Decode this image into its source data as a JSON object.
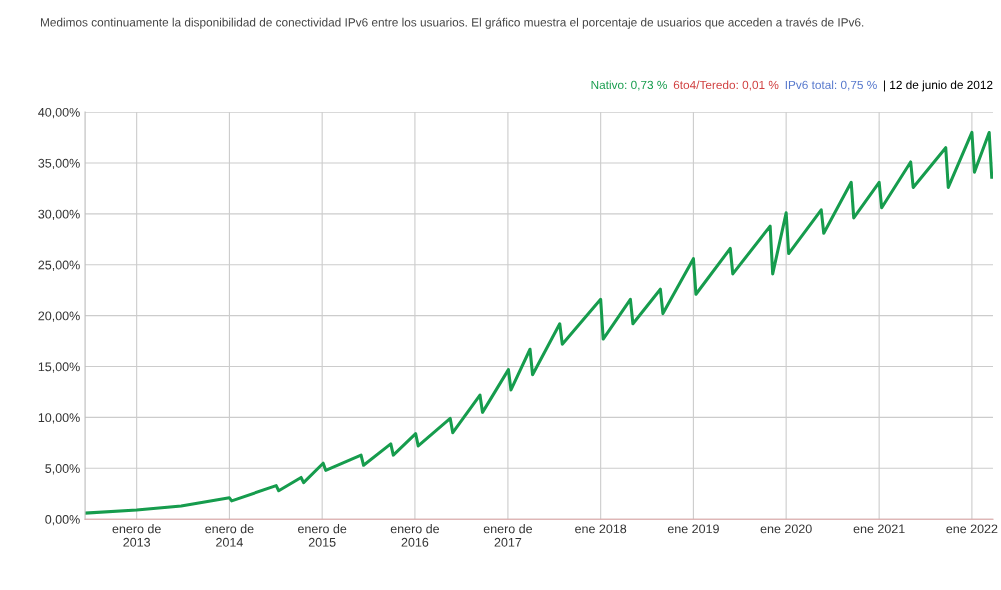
{
  "chart_data": {
    "type": "line",
    "title": "Medimos continuamente la disponibilidad de conectividad IPv6 entre los usuarios. El gráfico muestra el porcentaje de usuarios que acceden a través de IPv6.",
    "annotations": [
      "Nativo: 0,73 %",
      "6to4/Teredo: 0,01 %",
      "IPv6 total: 0,75 %",
      "| 12 de junio de 2012"
    ],
    "x": [
      "2012-06-12",
      "2013-01-01",
      "2013-06-25",
      "2014-01-01",
      "2014-01-10",
      "2014-07-04",
      "2014-07-14",
      "2014-10-10",
      "2014-10-20",
      "2015-01-05",
      "2015-01-15",
      "2015-06-03",
      "2015-06-13",
      "2015-09-28",
      "2015-10-08",
      "2016-01-04",
      "2016-01-14",
      "2016-05-19",
      "2016-05-29",
      "2016-09-13",
      "2016-09-23",
      "2017-01-03",
      "2017-01-13",
      "2017-03-29",
      "2017-04-08",
      "2017-07-24",
      "2017-08-03",
      "2018-01-01",
      "2018-01-11",
      "2018-04-28",
      "2018-05-08",
      "2018-08-24",
      "2018-09-03",
      "2019-01-01",
      "2019-01-11",
      "2019-05-26",
      "2019-06-05",
      "2019-10-30",
      "2019-11-09",
      "2020-01-01",
      "2020-01-11",
      "2020-05-18",
      "2020-05-28",
      "2020-09-13",
      "2020-09-23",
      "2021-01-01",
      "2021-01-11",
      "2021-05-05",
      "2021-05-15",
      "2021-09-20",
      "2021-09-30",
      "2022-01-01",
      "2022-01-11",
      "2022-03-10",
      "2022-03-20"
    ],
    "series": [
      {
        "color": "#169c4d",
        "values": [
          0.6,
          0.9,
          1.3,
          2.1,
          1.8,
          3.3,
          2.8,
          4.1,
          3.6,
          5.5,
          4.8,
          6.3,
          5.3,
          7.4,
          6.3,
          8.4,
          7.2,
          9.9,
          8.5,
          12.2,
          10.5,
          14.7,
          12.7,
          16.7,
          14.2,
          19.2,
          17.2,
          21.6,
          17.7,
          21.6,
          19.2,
          22.6,
          20.2,
          25.6,
          22.1,
          26.6,
          24.1,
          28.8,
          24.1,
          30.1,
          26.1,
          30.4,
          28.1,
          33.1,
          29.6,
          33.1,
          30.6,
          35.1,
          32.6,
          36.5,
          32.6,
          38.0,
          34.1,
          38.0,
          33.6
        ]
      }
    ],
    "xlim": [
      "2012-06-12",
      "2022-03-25"
    ],
    "xticks": [
      {
        "value": "2013-01-01",
        "label": "enero de\n2013"
      },
      {
        "value": "2014-01-01",
        "label": "enero de\n2014"
      },
      {
        "value": "2015-01-01",
        "label": "enero de\n2015"
      },
      {
        "value": "2016-01-01",
        "label": "enero de\n2016"
      },
      {
        "value": "2017-01-01",
        "label": "enero de\n2017"
      },
      {
        "value": "2018-01-01",
        "label": "ene 2018"
      },
      {
        "value": "2019-01-01",
        "label": "ene 2019"
      },
      {
        "value": "2020-01-01",
        "label": "ene 2020"
      },
      {
        "value": "2021-01-01",
        "label": "ene 2021"
      },
      {
        "value": "2022-01-01",
        "label": "ene 2022"
      }
    ],
    "ylim": [
      0,
      40
    ],
    "yticks": [
      {
        "value": 0,
        "label": "0,00%"
      },
      {
        "value": 5,
        "label": "5,00%"
      },
      {
        "value": 10,
        "label": "10,00%"
      },
      {
        "value": 15,
        "label": "15,00%"
      },
      {
        "value": 20,
        "label": "20,00%"
      },
      {
        "value": 25,
        "label": "25,00%"
      },
      {
        "value": 30,
        "label": "30,00%"
      },
      {
        "value": 35,
        "label": "35,00%"
      },
      {
        "value": 40,
        "label": "40,00%"
      }
    ],
    "grid": true,
    "marker": "none",
    "line_style": "solid"
  }
}
